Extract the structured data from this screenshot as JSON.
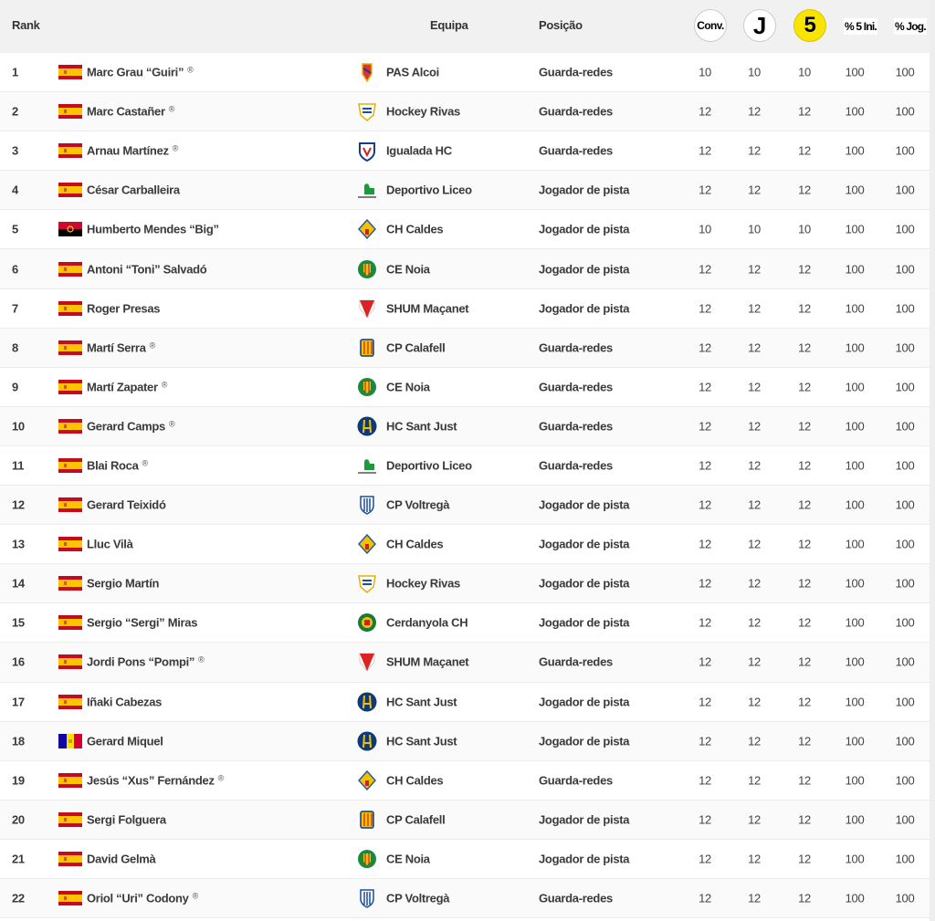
{
  "header": {
    "rank": "Rank",
    "team": "Equipa",
    "position": "Posição",
    "conv": "Conv.",
    "j": "J",
    "five": "5",
    "pct_start": "% 5 Ini.",
    "pct_played": "% Jog."
  },
  "gk_mark": "®",
  "rows": [
    {
      "rank": "1",
      "flag": "spain",
      "name": "Marc Grau “Guiri”",
      "gk": true,
      "crest": "pas-alcoi",
      "team": "PAS Alcoi",
      "position": "Guarda-redes",
      "conv": "10",
      "j": "10",
      "five": "10",
      "pct_start": "100",
      "pct_played": "100"
    },
    {
      "rank": "2",
      "flag": "spain",
      "name": "Marc Castañer",
      "gk": true,
      "crest": "hockey-rivas",
      "team": "Hockey Rivas",
      "position": "Guarda-redes",
      "conv": "12",
      "j": "12",
      "five": "12",
      "pct_start": "100",
      "pct_played": "100"
    },
    {
      "rank": "3",
      "flag": "spain",
      "name": "Arnau Martínez",
      "gk": true,
      "crest": "igualada",
      "team": "Igualada HC",
      "position": "Guarda-redes",
      "conv": "12",
      "j": "12",
      "five": "12",
      "pct_start": "100",
      "pct_played": "100"
    },
    {
      "rank": "4",
      "flag": "spain",
      "name": "César Carballeira",
      "gk": false,
      "crest": "liceo",
      "team": "Deportivo Liceo",
      "position": "Jogador de pista",
      "conv": "12",
      "j": "12",
      "five": "12",
      "pct_start": "100",
      "pct_played": "100"
    },
    {
      "rank": "5",
      "flag": "angola",
      "name": "Humberto Mendes “Big”",
      "gk": false,
      "crest": "caldes",
      "team": "CH Caldes",
      "position": "Jogador de pista",
      "conv": "10",
      "j": "10",
      "five": "10",
      "pct_start": "100",
      "pct_played": "100"
    },
    {
      "rank": "6",
      "flag": "spain",
      "name": "Antoni “Toni” Salvadó",
      "gk": false,
      "crest": "noia",
      "team": "CE Noia",
      "position": "Jogador de pista",
      "conv": "12",
      "j": "12",
      "five": "12",
      "pct_start": "100",
      "pct_played": "100"
    },
    {
      "rank": "7",
      "flag": "spain",
      "name": "Roger Presas",
      "gk": false,
      "crest": "shum",
      "team": "SHUM Maçanet",
      "position": "Jogador de pista",
      "conv": "12",
      "j": "12",
      "five": "12",
      "pct_start": "100",
      "pct_played": "100"
    },
    {
      "rank": "8",
      "flag": "spain",
      "name": "Martí Serra",
      "gk": true,
      "crest": "calafell",
      "team": "CP Calafell",
      "position": "Guarda-redes",
      "conv": "12",
      "j": "12",
      "five": "12",
      "pct_start": "100",
      "pct_played": "100"
    },
    {
      "rank": "9",
      "flag": "spain",
      "name": "Martí Zapater",
      "gk": true,
      "crest": "noia",
      "team": "CE Noia",
      "position": "Guarda-redes",
      "conv": "12",
      "j": "12",
      "five": "12",
      "pct_start": "100",
      "pct_played": "100"
    },
    {
      "rank": "10",
      "flag": "spain",
      "name": "Gerard Camps",
      "gk": true,
      "crest": "sant-just",
      "team": "HC Sant Just",
      "position": "Guarda-redes",
      "conv": "12",
      "j": "12",
      "five": "12",
      "pct_start": "100",
      "pct_played": "100"
    },
    {
      "rank": "11",
      "flag": "spain",
      "name": "Blai Roca",
      "gk": true,
      "crest": "liceo",
      "team": "Deportivo Liceo",
      "position": "Guarda-redes",
      "conv": "12",
      "j": "12",
      "five": "12",
      "pct_start": "100",
      "pct_played": "100"
    },
    {
      "rank": "12",
      "flag": "spain",
      "name": "Gerard Teixidó",
      "gk": false,
      "crest": "voltrega",
      "team": "CP Voltregà",
      "position": "Jogador de pista",
      "conv": "12",
      "j": "12",
      "five": "12",
      "pct_start": "100",
      "pct_played": "100"
    },
    {
      "rank": "13",
      "flag": "spain",
      "name": "Lluc Vilà",
      "gk": false,
      "crest": "caldes",
      "team": "CH Caldes",
      "position": "Jogador de pista",
      "conv": "12",
      "j": "12",
      "five": "12",
      "pct_start": "100",
      "pct_played": "100"
    },
    {
      "rank": "14",
      "flag": "spain",
      "name": "Sergio Martín",
      "gk": false,
      "crest": "hockey-rivas",
      "team": "Hockey Rivas",
      "position": "Jogador de pista",
      "conv": "12",
      "j": "12",
      "five": "12",
      "pct_start": "100",
      "pct_played": "100"
    },
    {
      "rank": "15",
      "flag": "spain",
      "name": "Sergio “Sergi” Miras",
      "gk": false,
      "crest": "cerdanyola",
      "team": "Cerdanyola CH",
      "position": "Jogador de pista",
      "conv": "12",
      "j": "12",
      "five": "12",
      "pct_start": "100",
      "pct_played": "100"
    },
    {
      "rank": "16",
      "flag": "spain",
      "name": "Jordi Pons “Pompi”",
      "gk": true,
      "crest": "shum",
      "team": "SHUM Maçanet",
      "position": "Guarda-redes",
      "conv": "12",
      "j": "12",
      "five": "12",
      "pct_start": "100",
      "pct_played": "100"
    },
    {
      "rank": "17",
      "flag": "spain",
      "name": "Iñaki Cabezas",
      "gk": false,
      "crest": "sant-just",
      "team": "HC Sant Just",
      "position": "Jogador de pista",
      "conv": "12",
      "j": "12",
      "five": "12",
      "pct_start": "100",
      "pct_played": "100"
    },
    {
      "rank": "18",
      "flag": "andorra",
      "name": "Gerard Miquel",
      "gk": false,
      "crest": "sant-just",
      "team": "HC Sant Just",
      "position": "Jogador de pista",
      "conv": "12",
      "j": "12",
      "five": "12",
      "pct_start": "100",
      "pct_played": "100"
    },
    {
      "rank": "19",
      "flag": "spain",
      "name": "Jesús “Xus” Fernández",
      "gk": true,
      "crest": "caldes",
      "team": "CH Caldes",
      "position": "Guarda-redes",
      "conv": "12",
      "j": "12",
      "five": "12",
      "pct_start": "100",
      "pct_played": "100"
    },
    {
      "rank": "20",
      "flag": "spain",
      "name": "Sergi Folguera",
      "gk": false,
      "crest": "calafell",
      "team": "CP Calafell",
      "position": "Jogador de pista",
      "conv": "12",
      "j": "12",
      "five": "12",
      "pct_start": "100",
      "pct_played": "100"
    },
    {
      "rank": "21",
      "flag": "spain",
      "name": "David Gelmà",
      "gk": false,
      "crest": "noia",
      "team": "CE Noia",
      "position": "Jogador de pista",
      "conv": "12",
      "j": "12",
      "five": "12",
      "pct_start": "100",
      "pct_played": "100"
    },
    {
      "rank": "22",
      "flag": "spain",
      "name": "Oriol “Uri” Codony",
      "gk": true,
      "crest": "voltrega",
      "team": "CP Voltregà",
      "position": "Guarda-redes",
      "conv": "12",
      "j": "12",
      "five": "12",
      "pct_start": "100",
      "pct_played": "100"
    }
  ]
}
